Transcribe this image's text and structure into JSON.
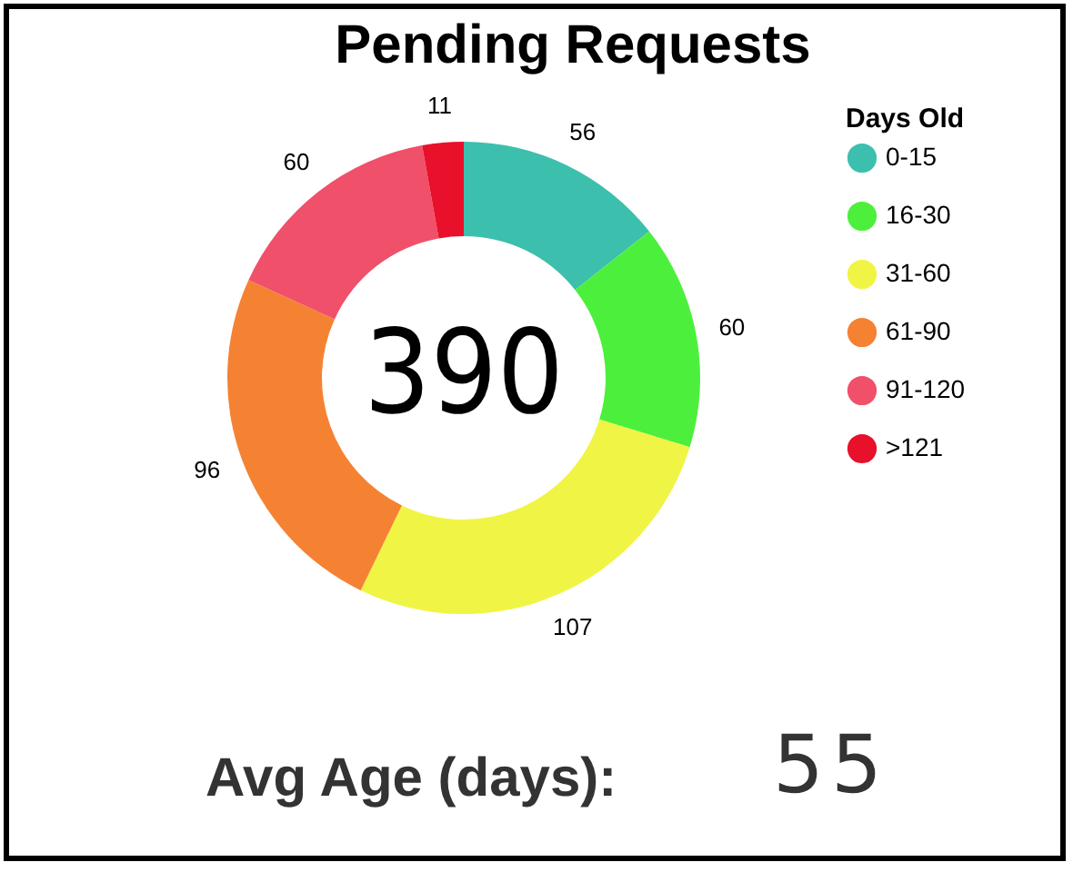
{
  "chart_data": {
    "type": "donut",
    "title": "Pending Requests",
    "legend_title": "Days Old",
    "categories": [
      "0-15",
      "16-30",
      "31-60",
      "61-90",
      "91-120",
      ">121"
    ],
    "values": [
      56,
      60,
      107,
      96,
      60,
      11
    ],
    "colors": [
      "#3dbfad",
      "#4cf03c",
      "#f0f545",
      "#f58232",
      "#f0506a",
      "#e8102a"
    ],
    "data_labels": true,
    "legend": "right",
    "annotations": [
      "390",
      "Avg Age (days):",
      "55"
    ]
  }
}
